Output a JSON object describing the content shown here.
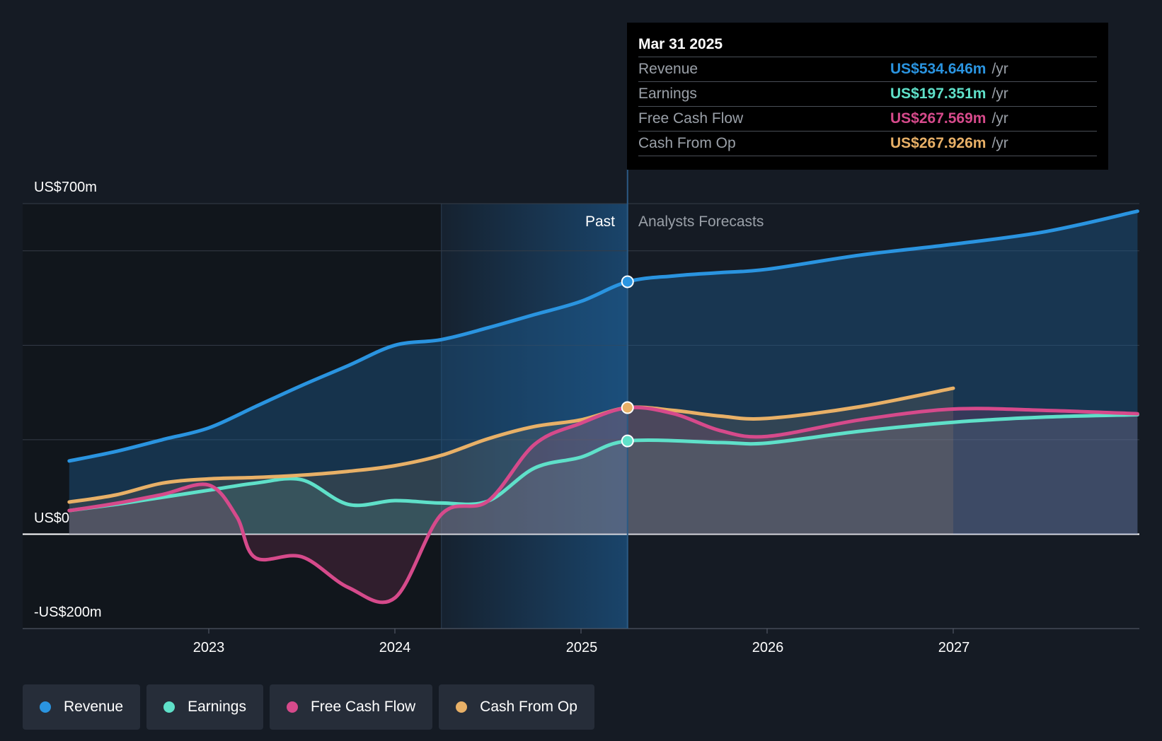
{
  "chart_data": {
    "type": "line",
    "x_axis": {
      "ticks": [
        "2023",
        "2024",
        "2025",
        "2026",
        "2027"
      ]
    },
    "y_axis": {
      "labels": [
        "US$700m",
        "US$0",
        "-US$200m"
      ],
      "range": [
        -200,
        700
      ],
      "unit": "US$m"
    },
    "periods": {
      "past_label": "Past",
      "forecast_label": "Analysts Forecasts"
    },
    "series": [
      {
        "name": "Revenue",
        "color": "#2a94e0",
        "points": [
          [
            2022.25,
            155
          ],
          [
            2022.5,
            175
          ],
          [
            2022.75,
            200
          ],
          [
            2023.0,
            225
          ],
          [
            2023.25,
            270
          ],
          [
            2023.5,
            315
          ],
          [
            2023.75,
            357
          ],
          [
            2024.0,
            400
          ],
          [
            2024.25,
            412
          ],
          [
            2024.5,
            437
          ],
          [
            2024.75,
            465
          ],
          [
            2025.0,
            493
          ],
          [
            2025.25,
            534.6
          ],
          [
            2025.5,
            547
          ],
          [
            2025.75,
            554
          ],
          [
            2026.0,
            561
          ],
          [
            2026.5,
            591
          ],
          [
            2027.0,
            614
          ],
          [
            2027.5,
            641
          ],
          [
            2027.99,
            684
          ]
        ]
      },
      {
        "name": "Earnings",
        "color": "#5fe0c9",
        "points": [
          [
            2022.25,
            50
          ],
          [
            2022.5,
            63
          ],
          [
            2022.75,
            78
          ],
          [
            2023.0,
            93
          ],
          [
            2023.25,
            108
          ],
          [
            2023.5,
            115
          ],
          [
            2023.75,
            63
          ],
          [
            2024.0,
            71
          ],
          [
            2024.25,
            66
          ],
          [
            2024.5,
            70
          ],
          [
            2024.75,
            140
          ],
          [
            2025.0,
            163
          ],
          [
            2025.25,
            197.4
          ],
          [
            2025.75,
            194
          ],
          [
            2026.0,
            193
          ],
          [
            2026.5,
            218
          ],
          [
            2027.0,
            237
          ],
          [
            2027.5,
            248
          ],
          [
            2027.99,
            253
          ]
        ]
      },
      {
        "name": "Free Cash Flow",
        "color": "#d64a8b",
        "points": [
          [
            2022.25,
            50
          ],
          [
            2022.5,
            65
          ],
          [
            2022.75,
            84
          ],
          [
            2023.0,
            104
          ],
          [
            2023.15,
            37
          ],
          [
            2023.25,
            -50
          ],
          [
            2023.5,
            -48
          ],
          [
            2023.75,
            -113
          ],
          [
            2024.0,
            -135
          ],
          [
            2024.25,
            42
          ],
          [
            2024.5,
            70
          ],
          [
            2024.75,
            190
          ],
          [
            2025.0,
            235
          ],
          [
            2025.25,
            267.6
          ],
          [
            2025.5,
            255
          ],
          [
            2025.75,
            219
          ],
          [
            2026.0,
            207
          ],
          [
            2026.5,
            242
          ],
          [
            2027.0,
            265
          ],
          [
            2027.5,
            262
          ],
          [
            2027.99,
            255
          ]
        ]
      },
      {
        "name": "Cash From Op",
        "color": "#e8b067",
        "points": [
          [
            2022.25,
            68
          ],
          [
            2022.5,
            83
          ],
          [
            2022.75,
            108
          ],
          [
            2023.0,
            117
          ],
          [
            2023.25,
            120
          ],
          [
            2023.5,
            125
          ],
          [
            2023.75,
            133
          ],
          [
            2024.0,
            145
          ],
          [
            2024.25,
            167
          ],
          [
            2024.5,
            202
          ],
          [
            2024.75,
            228
          ],
          [
            2025.0,
            242
          ],
          [
            2025.25,
            267.9
          ],
          [
            2025.5,
            262
          ],
          [
            2025.75,
            250
          ],
          [
            2026.0,
            245
          ],
          [
            2026.5,
            270
          ],
          [
            2027.0,
            309
          ]
        ]
      }
    ],
    "highlight_x": 2025.25,
    "legend_position": "bottom-left"
  },
  "tooltip": {
    "date": "Mar 31 2025",
    "rows": [
      {
        "name": "Revenue",
        "value": "US$534.646m",
        "unit": "/yr",
        "color": "#2a94e0"
      },
      {
        "name": "Earnings",
        "value": "US$197.351m",
        "unit": "/yr",
        "color": "#5fe0c9"
      },
      {
        "name": "Free Cash Flow",
        "value": "US$267.569m",
        "unit": "/yr",
        "color": "#d64a8b"
      },
      {
        "name": "Cash From Op",
        "value": "US$267.926m",
        "unit": "/yr",
        "color": "#e8b067"
      }
    ]
  },
  "legend": [
    {
      "label": "Revenue",
      "color": "#2a94e0"
    },
    {
      "label": "Earnings",
      "color": "#5fe0c9"
    },
    {
      "label": "Free Cash Flow",
      "color": "#d64a8b"
    },
    {
      "label": "Cash From Op",
      "color": "#e8b067"
    }
  ]
}
